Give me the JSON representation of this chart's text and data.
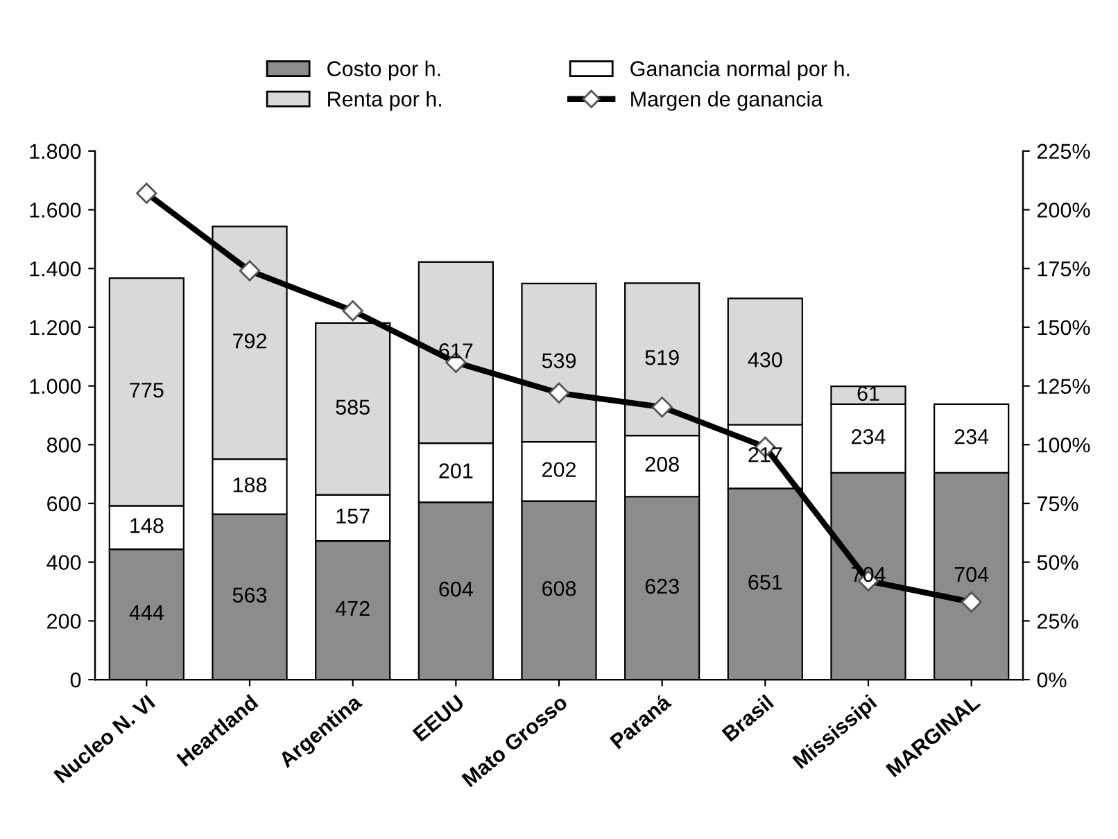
{
  "chart_data": {
    "type": "bar",
    "stacked": true,
    "categories": [
      "Nucleo N. VI",
      "Heartland",
      "Argentina",
      "EEUU",
      "Mato Grosso",
      "Paraná",
      "Brasil",
      "Mississipi",
      "MARGINAL"
    ],
    "series": [
      {
        "name": "Costo por h.",
        "color": "#8c8c8c",
        "values": [
          444,
          563,
          472,
          604,
          608,
          623,
          651,
          704,
          704
        ],
        "value_labels": [
          "444",
          "563",
          "472",
          "604",
          "608",
          "623",
          "651",
          "704",
          "704"
        ]
      },
      {
        "name": "Ganancia normal por h.",
        "color": "#ffffff",
        "values": [
          148,
          188,
          157,
          201,
          202,
          208,
          217,
          234,
          234
        ],
        "value_labels": [
          "148",
          "188",
          "157",
          "201",
          "202",
          "208",
          "217",
          "234",
          "234"
        ]
      },
      {
        "name": "Renta por h.",
        "color": "#d9d9d9",
        "values": [
          775,
          792,
          585,
          617,
          539,
          519,
          430,
          61,
          null
        ],
        "value_labels": [
          "775",
          "792",
          "585",
          "617",
          "539",
          "519",
          "430",
          "61",
          null
        ]
      },
      {
        "name": "Margen de ganancia",
        "type": "line",
        "axis": "y2",
        "color": "#000000",
        "marker": "diamond",
        "values": [
          207,
          174,
          157,
          135,
          122,
          116,
          99,
          42,
          33
        ]
      }
    ],
    "ylim": [
      0,
      1800
    ],
    "yticks": [
      0,
      200,
      400,
      600,
      800,
      {
        "value": 1000,
        "label": "1.000"
      },
      {
        "value": 1200,
        "label": "1.200"
      },
      {
        "value": 1400,
        "label": "1.400"
      },
      {
        "value": 1600,
        "label": "1.600"
      },
      {
        "value": 1800,
        "label": "1.800"
      }
    ],
    "y2lim": [
      0,
      225
    ],
    "y2ticks": [
      {
        "value": 0,
        "label": "0%"
      },
      {
        "value": 25,
        "label": "25%"
      },
      {
        "value": 50,
        "label": "50%"
      },
      {
        "value": 75,
        "label": "75%"
      },
      {
        "value": 100,
        "label": "100%"
      },
      {
        "value": 125,
        "label": "125%"
      },
      {
        "value": 150,
        "label": "150%"
      },
      {
        "value": 175,
        "label": "175%"
      },
      {
        "value": 200,
        "label": "200%"
      },
      {
        "value": 225,
        "label": "225%"
      }
    ],
    "legend": "top",
    "grid": false
  }
}
